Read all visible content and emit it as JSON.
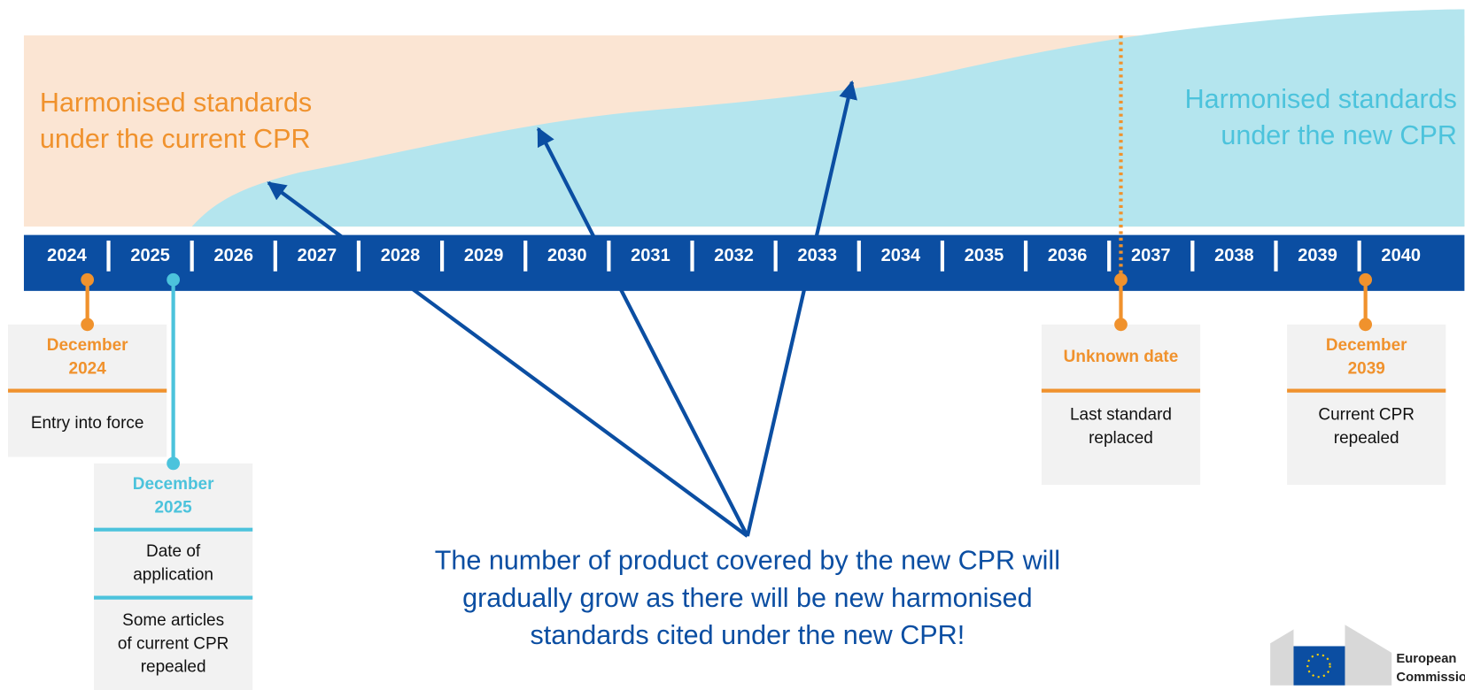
{
  "left_label": {
    "lines": [
      "Harmonised standards",
      "under the current CPR"
    ]
  },
  "right_label": {
    "lines": [
      "Harmonised standards",
      "under the new CPR"
    ]
  },
  "years": [
    "2024",
    "2025",
    "2026",
    "2027",
    "2028",
    "2029",
    "2030",
    "2031",
    "2032",
    "2033",
    "2034",
    "2035",
    "2036",
    "2037",
    "2038",
    "2039",
    "2040"
  ],
  "events": [
    {
      "title": [
        "December",
        "2024"
      ],
      "sections": [
        [
          "Entry into force"
        ]
      ]
    },
    {
      "title": [
        "December",
        "2025"
      ],
      "sections": [
        [
          "Date of",
          "application"
        ],
        [
          "Some articles",
          "of  current CPR",
          "repealed"
        ]
      ]
    },
    {
      "title": [
        "Unknown date"
      ],
      "sections": [
        [
          "Last standard",
          "replaced"
        ]
      ]
    },
    {
      "title": [
        "December",
        "2039"
      ],
      "sections": [
        [
          "Current CPR",
          "repealed"
        ]
      ]
    }
  ],
  "message": {
    "lines": [
      "The number of product covered by the new CPR will",
      "gradually grow as there will be new harmonised",
      "standards cited under the new CPR!"
    ]
  },
  "logo": {
    "lines": [
      "European",
      "Commission"
    ]
  }
}
